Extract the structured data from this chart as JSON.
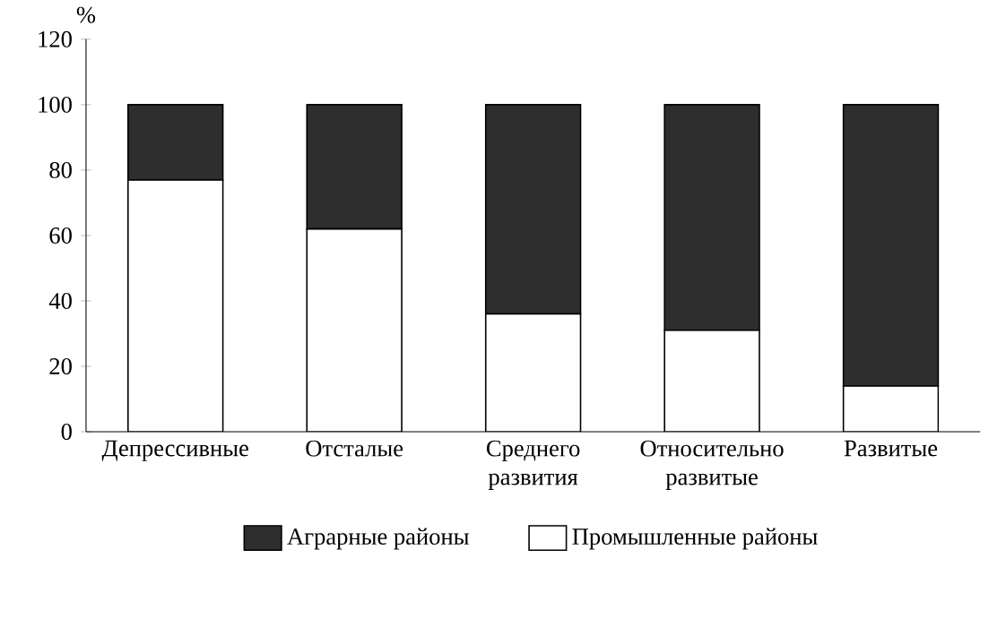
{
  "chart_data": {
    "type": "bar",
    "stacked": true,
    "ylabel": "%",
    "categories": [
      "Депрессивные",
      "Отсталые",
      "Среднего развития",
      "Относительно развитые",
      "Развитые"
    ],
    "series": [
      {
        "name": "Промышленные районы",
        "color": "#ffffff",
        "values": [
          77,
          62,
          36,
          31,
          14
        ]
      },
      {
        "name": "Аграрные районы",
        "color": "#2e2e2e",
        "values": [
          23,
          38,
          64,
          69,
          86
        ]
      }
    ],
    "ylim": [
      0,
      120
    ],
    "yticks": [
      0,
      20,
      40,
      60,
      80,
      100,
      120
    ],
    "legend": "bottom",
    "grid": false
  }
}
